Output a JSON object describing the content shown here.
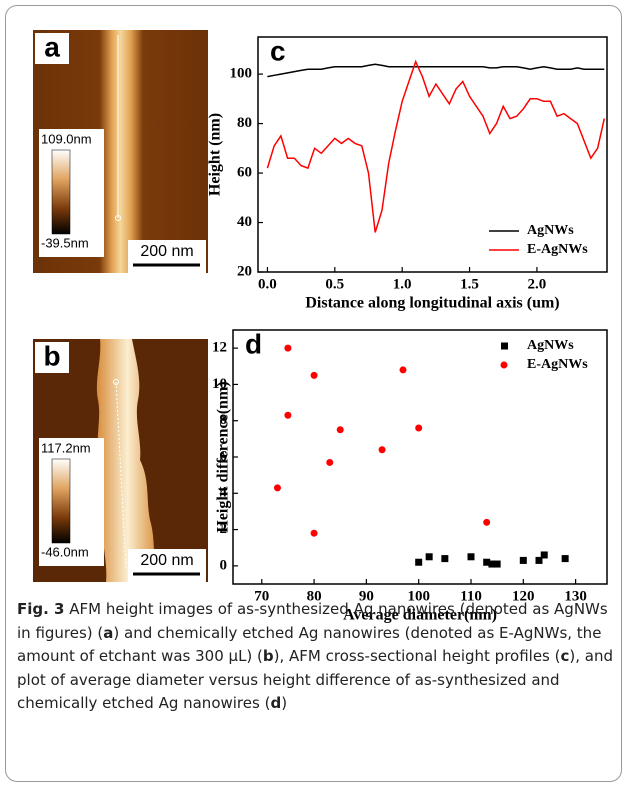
{
  "panels": [
    {
      "label": "a",
      "colorbar_max": "109.0nm",
      "colorbar_min": "-39.5nm",
      "scale_bar": "200 nm"
    },
    {
      "label": "b",
      "colorbar_max": "117.2nm",
      "colorbar_min": "-46.0nm",
      "scale_bar": "200 nm"
    }
  ],
  "chart_data": [
    {
      "type": "line",
      "panel_label": "c",
      "xlabel": "Distance along longitudinal axis (um)",
      "ylabel": "Height (nm)",
      "x": [
        0,
        0.05,
        0.1,
        0.15,
        0.2,
        0.25,
        0.3,
        0.35,
        0.4,
        0.45,
        0.5,
        0.55,
        0.6,
        0.65,
        0.7,
        0.75,
        0.8,
        0.85,
        0.9,
        0.95,
        1.0,
        1.05,
        1.1,
        1.15,
        1.2,
        1.25,
        1.3,
        1.35,
        1.4,
        1.45,
        1.5,
        1.55,
        1.6,
        1.65,
        1.7,
        1.75,
        1.8,
        1.85,
        1.9,
        1.95,
        2.0,
        2.05,
        2.1,
        2.15,
        2.2,
        2.25,
        2.3,
        2.35,
        2.4,
        2.45,
        2.5
      ],
      "series": [
        {
          "name": "AgNWs",
          "color": "#000000",
          "values": [
            99,
            99.5,
            100,
            100.5,
            101,
            101.5,
            102,
            102,
            102,
            102.5,
            103,
            103,
            103,
            103,
            103,
            103.5,
            104,
            103.5,
            103,
            103,
            103,
            103,
            103,
            103,
            103,
            103,
            103,
            103,
            103,
            103,
            103,
            103,
            103,
            102.5,
            102.5,
            103,
            103,
            103,
            102.5,
            102,
            102.5,
            103,
            102.5,
            102,
            102,
            102,
            102.5,
            102,
            102,
            102,
            102
          ]
        },
        {
          "name": "E-AgNWs",
          "color": "#ff0000",
          "values": [
            62,
            71,
            75,
            66,
            66,
            63,
            62,
            70,
            68,
            71,
            74,
            72,
            74,
            72,
            71,
            60,
            36,
            45,
            64,
            77,
            89,
            97,
            105,
            99,
            91,
            96,
            92,
            88,
            94,
            97,
            91,
            87,
            83,
            76,
            80,
            87,
            82,
            83,
            86,
            90,
            90,
            89,
            89,
            83,
            84,
            82,
            80,
            73,
            66,
            70,
            82
          ]
        }
      ],
      "xlim": [
        -0.07,
        2.52
      ],
      "ylim": [
        20,
        115
      ],
      "xticks": [
        {
          "value": 0,
          "label": "0.0"
        },
        0.5,
        {
          "value": 1,
          "label": "1.0"
        },
        1.5,
        {
          "value": 2,
          "label": "2.0"
        }
      ],
      "yticks": [
        20,
        40,
        60,
        80,
        100
      ],
      "legend": "lower right"
    },
    {
      "type": "scatter",
      "panel_label": "d",
      "xlabel": "Average diameter(nm)",
      "ylabel": "Height difference(nm)",
      "series": [
        {
          "name": "AgNWs",
          "color": "#000000",
          "marker": "square",
          "x": [
            100,
            102,
            105,
            110,
            113,
            114,
            115,
            120,
            123,
            124,
            128
          ],
          "values": [
            0.2,
            0.5,
            0.4,
            0.5,
            0.2,
            0.1,
            0.1,
            0.3,
            0.3,
            0.6,
            0.4
          ]
        },
        {
          "name": "E-AgNWs",
          "color": "#ff0000",
          "marker": "circle",
          "x": [
            75,
            80,
            97,
            75,
            100,
            85,
            93,
            83,
            73,
            113,
            80
          ],
          "values": [
            12,
            10.5,
            10.8,
            8.3,
            7.6,
            7.5,
            6.4,
            5.7,
            4.3,
            2.4,
            1.8
          ]
        }
      ],
      "xlim": [
        64.5,
        136
      ],
      "ylim": [
        -1,
        13
      ],
      "xticks": [
        70,
        80,
        90,
        100,
        110,
        120,
        130
      ],
      "yticks": [
        0,
        2,
        4,
        6,
        8,
        10,
        12
      ],
      "legend": "upper right"
    }
  ],
  "caption": [
    {
      "text": "Fig. 3",
      "bold": true
    },
    {
      "text": " AFM height images of as-synthesized Ag nanowires (denoted as AgNWs in figures) (",
      "bold": false
    },
    {
      "text": "a",
      "bold": true
    },
    {
      "text": ") and chemically etched Ag nanowires (denoted as E-AgNWs, the amount of etchant was 300 μL) (",
      "bold": false
    },
    {
      "text": "b",
      "bold": true
    },
    {
      "text": "), AFM cross-sectional height profiles (",
      "bold": false
    },
    {
      "text": "c",
      "bold": true
    },
    {
      "text": "), and plot of average diameter versus height difference of as-synthesized and chemically etched Ag nanowires (",
      "bold": false
    },
    {
      "text": "d",
      "bold": true
    },
    {
      "text": ")",
      "bold": false
    }
  ]
}
